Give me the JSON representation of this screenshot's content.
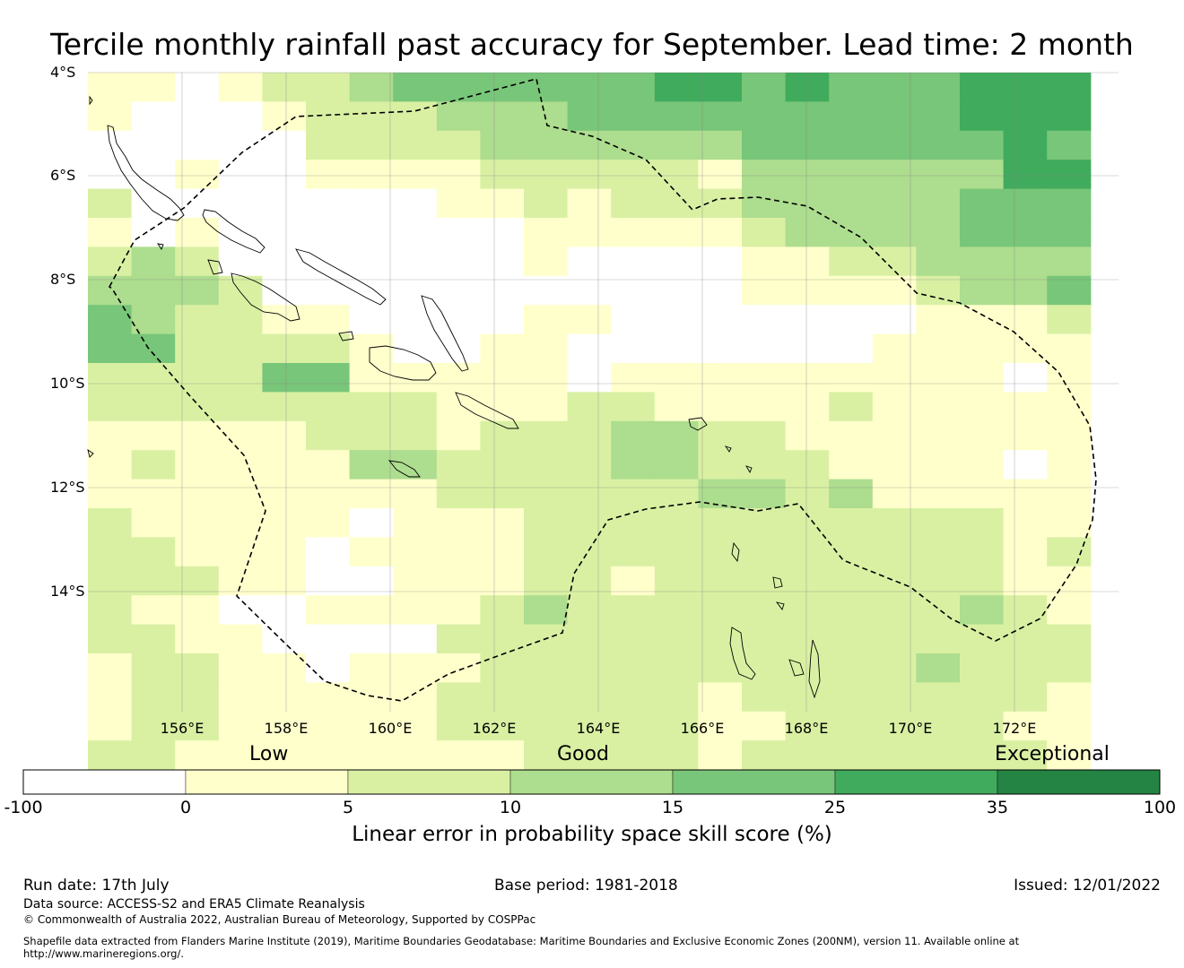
{
  "title": "Tercile monthly rainfall past accuracy for September. Lead time: 2 month",
  "map": {
    "lat_labels": [
      "4°S",
      "6°S",
      "8°S",
      "10°S",
      "12°S",
      "14°S"
    ],
    "lon_labels": [
      "156°E",
      "158°E",
      "160°E",
      "162°E",
      "164°E",
      "166°E",
      "168°E",
      "170°E",
      "172°E"
    ],
    "lon_range": [
      154.2,
      174.0
    ],
    "lat_range": [
      -16.3,
      -4.0
    ],
    "grid": true,
    "eez_boundary": "dashed",
    "grid_values": [
      [
        1,
        1,
        0,
        1,
        2,
        2,
        3,
        4,
        4,
        4,
        4,
        4,
        4,
        5,
        5,
        4,
        5,
        4,
        4,
        4,
        5,
        5,
        5
      ],
      [
        1,
        0,
        0,
        0,
        1,
        2,
        2,
        2,
        3,
        3,
        3,
        4,
        4,
        4,
        4,
        4,
        4,
        4,
        4,
        4,
        5,
        5,
        5
      ],
      [
        0,
        0,
        0,
        0,
        0,
        2,
        2,
        2,
        2,
        3,
        3,
        3,
        3,
        3,
        3,
        4,
        4,
        4,
        4,
        4,
        4,
        5,
        4
      ],
      [
        0,
        0,
        1,
        0,
        0,
        1,
        1,
        1,
        1,
        2,
        2,
        2,
        2,
        2,
        1,
        3,
        3,
        3,
        3,
        3,
        3,
        5,
        5
      ],
      [
        2,
        0,
        0,
        0,
        0,
        0,
        0,
        0,
        1,
        1,
        2,
        1,
        2,
        2,
        2,
        3,
        3,
        3,
        3,
        3,
        4,
        4,
        4
      ],
      [
        1,
        0,
        1,
        0,
        0,
        0,
        0,
        0,
        0,
        0,
        1,
        1,
        1,
        1,
        1,
        2,
        3,
        3,
        3,
        3,
        4,
        4,
        4
      ],
      [
        2,
        3,
        2,
        0,
        0,
        0,
        0,
        0,
        0,
        0,
        1,
        0,
        0,
        0,
        0,
        1,
        1,
        2,
        2,
        3,
        3,
        3,
        3
      ],
      [
        3,
        3,
        3,
        2,
        0,
        0,
        0,
        0,
        0,
        0,
        0,
        0,
        0,
        0,
        0,
        1,
        1,
        1,
        1,
        2,
        3,
        3,
        4
      ],
      [
        4,
        3,
        2,
        2,
        1,
        1,
        0,
        0,
        0,
        0,
        1,
        1,
        0,
        0,
        0,
        0,
        0,
        0,
        0,
        1,
        1,
        1,
        2
      ],
      [
        4,
        4,
        2,
        2,
        2,
        2,
        1,
        0,
        0,
        1,
        1,
        0,
        0,
        0,
        0,
        0,
        0,
        0,
        1,
        1,
        1,
        1,
        1
      ],
      [
        2,
        2,
        2,
        2,
        4,
        4,
        1,
        1,
        1,
        1,
        1,
        0,
        1,
        1,
        1,
        1,
        1,
        1,
        1,
        1,
        1,
        0,
        1
      ],
      [
        2,
        2,
        2,
        2,
        2,
        2,
        2,
        2,
        1,
        1,
        1,
        2,
        2,
        1,
        1,
        1,
        1,
        2,
        1,
        1,
        1,
        1,
        1
      ],
      [
        1,
        1,
        1,
        1,
        1,
        2,
        2,
        2,
        1,
        2,
        2,
        2,
        3,
        3,
        2,
        2,
        1,
        1,
        1,
        1,
        1,
        1,
        1
      ],
      [
        1,
        2,
        1,
        1,
        1,
        1,
        3,
        3,
        2,
        2,
        2,
        2,
        3,
        3,
        2,
        2,
        2,
        1,
        1,
        1,
        1,
        0,
        1
      ],
      [
        1,
        1,
        1,
        1,
        1,
        1,
        1,
        1,
        2,
        2,
        2,
        2,
        2,
        2,
        3,
        3,
        2,
        3,
        1,
        1,
        1,
        1,
        1
      ],
      [
        2,
        1,
        1,
        1,
        1,
        1,
        0,
        1,
        1,
        1,
        2,
        2,
        2,
        2,
        2,
        2,
        2,
        2,
        2,
        2,
        2,
        1,
        1
      ],
      [
        2,
        2,
        1,
        1,
        1,
        0,
        1,
        1,
        1,
        1,
        2,
        2,
        2,
        2,
        2,
        2,
        2,
        2,
        2,
        2,
        2,
        1,
        2
      ],
      [
        2,
        2,
        2,
        1,
        1,
        0,
        0,
        1,
        1,
        1,
        2,
        2,
        1,
        2,
        2,
        2,
        2,
        2,
        2,
        2,
        2,
        1,
        1
      ],
      [
        2,
        1,
        1,
        0,
        0,
        1,
        1,
        1,
        1,
        2,
        3,
        2,
        2,
        2,
        2,
        2,
        2,
        2,
        2,
        2,
        3,
        2,
        1
      ],
      [
        2,
        2,
        1,
        1,
        0,
        0,
        0,
        0,
        2,
        2,
        2,
        2,
        2,
        2,
        2,
        2,
        2,
        2,
        2,
        2,
        2,
        2,
        2
      ],
      [
        1,
        2,
        2,
        1,
        1,
        0,
        1,
        1,
        1,
        2,
        2,
        2,
        2,
        2,
        2,
        2,
        2,
        2,
        2,
        3,
        2,
        2,
        2
      ],
      [
        1,
        2,
        2,
        1,
        1,
        1,
        1,
        1,
        2,
        2,
        2,
        2,
        2,
        2,
        1,
        2,
        2,
        2,
        2,
        2,
        2,
        2,
        1
      ],
      [
        1,
        2,
        2,
        1,
        1,
        1,
        1,
        1,
        2,
        2,
        2,
        2,
        2,
        2,
        1,
        1,
        2,
        2,
        2,
        2,
        2,
        1,
        1
      ],
      [
        2,
        2,
        1,
        1,
        1,
        1,
        1,
        1,
        1,
        1,
        2,
        2,
        2,
        2,
        1,
        2,
        2,
        2,
        2,
        2,
        2,
        2,
        1
      ]
    ]
  },
  "legend": {
    "categories": [
      "Low",
      "Good",
      "Exceptional"
    ],
    "ticks": [
      "-100",
      "0",
      "5",
      "10",
      "15",
      "25",
      "35",
      "100"
    ],
    "colors": [
      "#ffffff",
      "#ffffcc",
      "#d9f0a3",
      "#addd8e",
      "#78c679",
      "#41ab5d",
      "#238443"
    ],
    "label": "Linear error in probability space skill score (%)"
  },
  "footer": {
    "run_date": "Run date: 17th July",
    "base_period": "Base period: 1981-2018",
    "issued": "Issued: 12/01/2022",
    "data_source": "Data source: ACCESS-S2 and ERA5 Climate Reanalysis",
    "copyright": "© Commonwealth of Australia 2022, Australian Bureau of Meteorology, Supported by COSPPac",
    "shapefile": "Shapefile data extracted from Flanders Marine Institute (2019), Maritime Boundaries Geodatabase: Maritime Boundaries and Exclusive Economic Zones (200NM), version 11. Available online at",
    "url": "http://www.marineregions.org/."
  }
}
